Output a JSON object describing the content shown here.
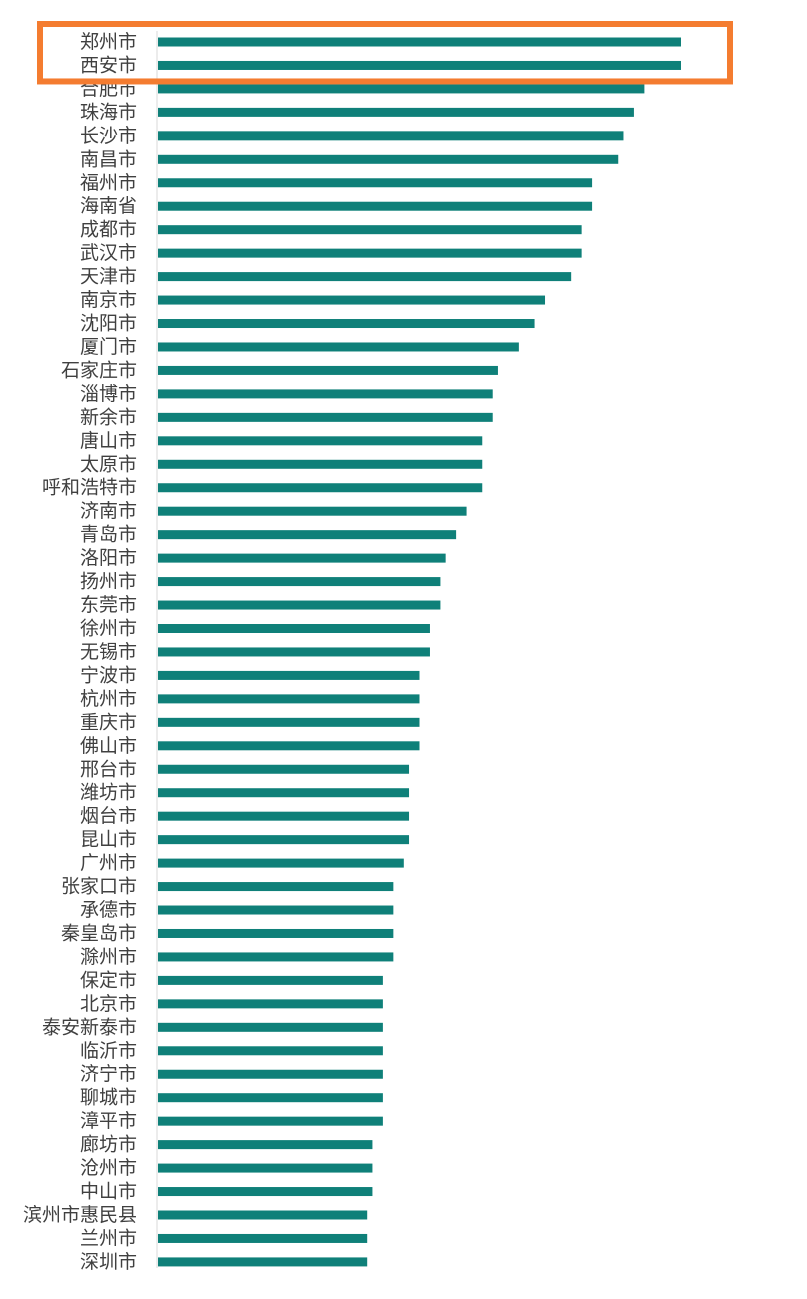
{
  "colors": {
    "bar": "#0f8079",
    "highlight": "#f47c30",
    "axis": "#d9d9d9",
    "label": "#404040"
  },
  "chart_data": {
    "type": "bar",
    "orientation": "horizontal",
    "title": "",
    "xlabel": "",
    "ylabel": "",
    "grid": false,
    "legend": "none",
    "xlim": [
      0,
      100
    ],
    "categories": [
      "郑州市",
      "西安市",
      "合肥市",
      "珠海市",
      "长沙市",
      "南昌市",
      "福州市",
      "海南省",
      "成都市",
      "武汉市",
      "天津市",
      "南京市",
      "沈阳市",
      "厦门市",
      "石家庄市",
      "淄博市",
      "新余市",
      "唐山市",
      "太原市",
      "呼和浩特市",
      "济南市",
      "青岛市",
      "洛阳市",
      "扬州市",
      "东莞市",
      "徐州市",
      "无锡市",
      "宁波市",
      "杭州市",
      "重庆市",
      "佛山市",
      "邢台市",
      "潍坊市",
      "烟台市",
      "昆山市",
      "广州市",
      "张家口市",
      "承德市",
      "秦皇岛市",
      "滁州市",
      "保定市",
      "北京市",
      "泰安新泰市",
      "临沂市",
      "济宁市",
      "聊城市",
      "漳平市",
      "廊坊市",
      "沧州市",
      "中山市",
      "滨州市惠民县",
      "兰州市",
      "深圳市"
    ],
    "values": [
      100,
      100,
      93,
      91,
      89,
      88,
      83,
      83,
      81,
      81,
      79,
      74,
      72,
      69,
      65,
      64,
      64,
      62,
      62,
      62,
      59,
      57,
      55,
      54,
      54,
      52,
      52,
      50,
      50,
      50,
      50,
      48,
      48,
      48,
      48,
      47,
      45,
      45,
      45,
      45,
      43,
      43,
      43,
      43,
      43,
      43,
      43,
      41,
      41,
      41,
      40,
      40,
      40
    ],
    "highlighted_categories": [
      "郑州市",
      "西安市"
    ]
  }
}
